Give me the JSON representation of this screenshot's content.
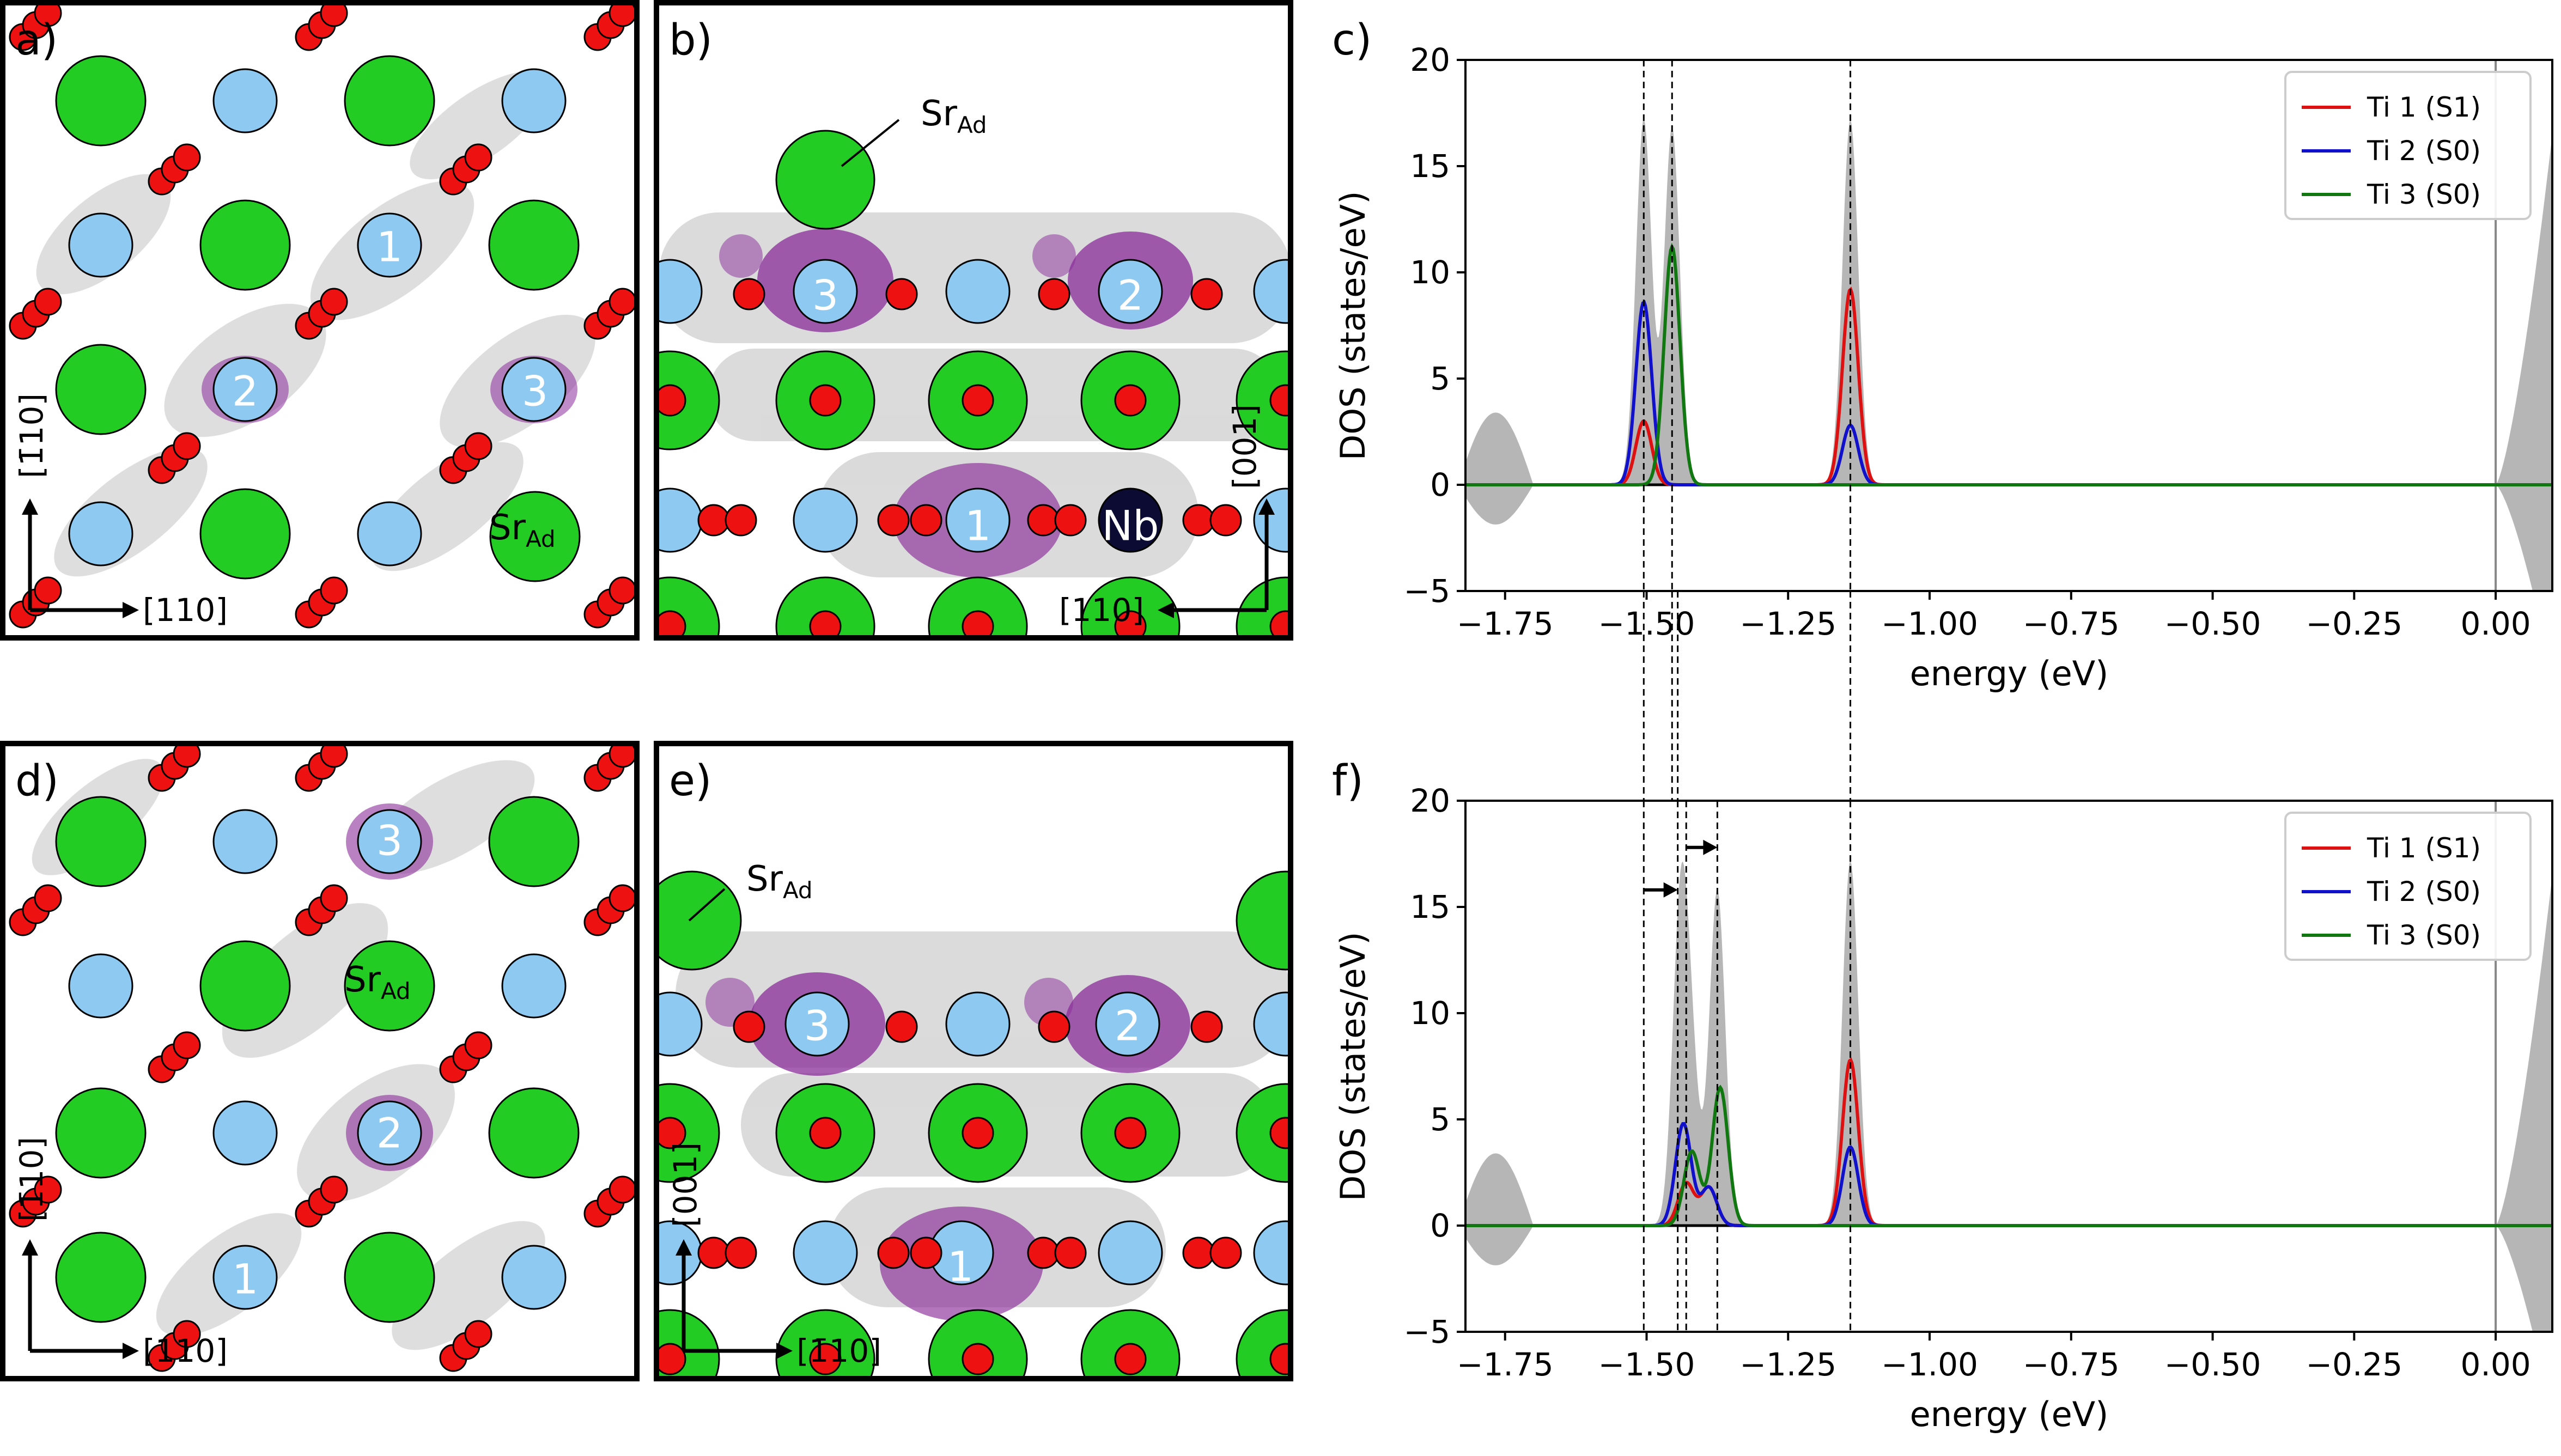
{
  "panels": {
    "a": {
      "label": "a)",
      "atom_labels": [
        "1",
        "2",
        "3"
      ],
      "adatom": {
        "base": "Sr",
        "sub": "Ad"
      },
      "axis_vertical": "[1̄10]",
      "axis_horizontal": "[110]"
    },
    "b": {
      "label": "b)",
      "atom_labels": [
        "3",
        "2",
        "1"
      ],
      "dopant_label": "Nb",
      "adatom": {
        "base": "Sr",
        "sub": "Ad"
      },
      "axis_vertical": "[001]",
      "axis_horizontal": "[110]"
    },
    "d": {
      "label": "d)",
      "atom_labels": [
        "3",
        "2",
        "1"
      ],
      "adatom": {
        "base": "Sr",
        "sub": "Ad"
      },
      "axis_vertical": "[1̄10]",
      "axis_horizontal": "[110]"
    },
    "e": {
      "label": "e)",
      "atom_labels": [
        "3",
        "2",
        "1"
      ],
      "adatom": {
        "base": "Sr",
        "sub": "Ad"
      },
      "axis_vertical": "[001]",
      "axis_horizontal": "[1̄10]"
    }
  },
  "colors": {
    "sr": "#22cc22",
    "ti": "#8ec9f2",
    "o": "#ee1111",
    "polaron": "#8a2c9a",
    "density": "#b9b9b9",
    "nb": "#0b0b33",
    "ti1": "#dd1111",
    "ti2": "#1111cc",
    "ti3": "#117711",
    "total": "#a9a9a9"
  },
  "chart_data": [
    {
      "panel": "c)",
      "type": "line",
      "xlabel": "energy (eV)",
      "ylabel": "DOS (states/eV)",
      "xlim": [
        -1.82,
        0.1
      ],
      "ylim": [
        -5,
        20
      ],
      "xticks": [
        -1.75,
        -1.5,
        -1.25,
        -1.0,
        -0.75,
        -0.5,
        -0.25,
        0.0
      ],
      "xtick_labels": [
        "−1.75",
        "−1.50",
        "−1.25",
        "−1.00",
        "−0.75",
        "−0.50",
        "−0.25",
        "0.00"
      ],
      "yticks": [
        -5,
        0,
        5,
        10,
        15,
        20
      ],
      "ytick_labels": [
        "−5",
        "0",
        "5",
        "10",
        "15",
        "20"
      ],
      "legend_position": "top-right",
      "total_dos_peaks": [
        {
          "center": -1.505,
          "height": 17.2
        },
        {
          "center": -1.455,
          "height": 16.8
        },
        {
          "center": -1.14,
          "height": 17.2
        }
      ],
      "series": [
        {
          "name": "Ti 1 (S1)",
          "color": "#dd1111",
          "peaks": [
            {
              "center": -1.505,
              "height": 3.0
            },
            {
              "center": -1.14,
              "height": 9.2
            }
          ]
        },
        {
          "name": "Ti 2 (S0)",
          "color": "#1111cc",
          "peaks": [
            {
              "center": -1.505,
              "height": 8.6
            },
            {
              "center": -1.14,
              "height": 2.8
            }
          ]
        },
        {
          "name": "Ti 3 (S0)",
          "color": "#117711",
          "peaks": [
            {
              "center": -1.455,
              "height": 11.2
            }
          ]
        }
      ],
      "dashed_lines": [
        -1.505,
        -1.455,
        -1.14
      ],
      "fermi_line": 0.0
    },
    {
      "panel": "f)",
      "type": "line",
      "xlabel": "energy (eV)",
      "ylabel": "DOS (states/eV)",
      "xlim": [
        -1.82,
        0.1
      ],
      "ylim": [
        -5,
        20
      ],
      "xticks": [
        -1.75,
        -1.5,
        -1.25,
        -1.0,
        -0.75,
        -0.5,
        -0.25,
        0.0
      ],
      "xtick_labels": [
        "−1.75",
        "−1.50",
        "−1.25",
        "−1.00",
        "−0.75",
        "−0.50",
        "−0.25",
        "0.00"
      ],
      "yticks": [
        -5,
        0,
        5,
        10,
        15,
        20
      ],
      "ytick_labels": [
        "−5",
        "0",
        "5",
        "10",
        "15",
        "20"
      ],
      "legend_position": "top-right",
      "total_dos_peaks": [
        {
          "center": -1.44,
          "height": 14.6
        },
        {
          "center": -1.42,
          "height": 6.0
        },
        {
          "center": -1.375,
          "height": 15.8
        },
        {
          "center": -1.14,
          "height": 17.2
        }
      ],
      "series": [
        {
          "name": "Ti 1 (S1)",
          "color": "#dd1111",
          "peaks": [
            {
              "center": -1.43,
              "height": 2.0
            },
            {
              "center": -1.39,
              "height": 1.8
            },
            {
              "center": -1.14,
              "height": 7.8
            }
          ]
        },
        {
          "name": "Ti 2 (S0)",
          "color": "#1111cc",
          "peaks": [
            {
              "center": -1.435,
              "height": 4.8
            },
            {
              "center": -1.39,
              "height": 1.8
            },
            {
              "center": -1.14,
              "height": 3.7
            }
          ]
        },
        {
          "name": "Ti 3 (S0)",
          "color": "#117711",
          "peaks": [
            {
              "center": -1.42,
              "height": 3.5
            },
            {
              "center": -1.37,
              "height": 6.5
            }
          ]
        }
      ],
      "dashed_lines": [
        -1.505,
        -1.445,
        -1.43,
        -1.375,
        -1.14
      ],
      "shift_arrows": [
        {
          "from": -1.505,
          "to": -1.445,
          "y": 15.8
        },
        {
          "from": -1.43,
          "to": -1.375,
          "y": 17.8
        }
      ],
      "fermi_line": 0.0
    }
  ]
}
